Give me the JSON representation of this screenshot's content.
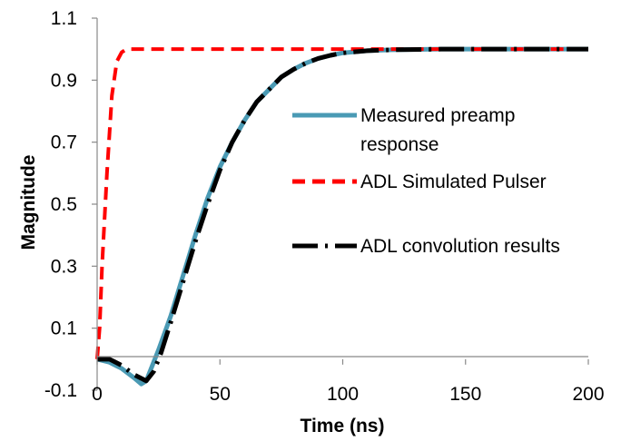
{
  "chart_data": {
    "type": "line",
    "xlabel": "Time (ns)",
    "ylabel": "Magnitude",
    "xlim": [
      0,
      200
    ],
    "ylim": [
      -0.1,
      1.1
    ],
    "x_ticks": [
      "0",
      "50",
      "100",
      "150",
      "200"
    ],
    "y_ticks": [
      "-0.1",
      "0.1",
      "0.3",
      "0.5",
      "0.7",
      "0.9",
      "1.1"
    ],
    "legend_position": "center-right",
    "grid": false,
    "series": [
      {
        "name": "Measured preamp response",
        "color": "#4a9ab4",
        "style": "solid",
        "points": [
          [
            0,
            0
          ],
          [
            5,
            -0.01
          ],
          [
            10,
            -0.03
          ],
          [
            15,
            -0.06
          ],
          [
            18,
            -0.08
          ],
          [
            20,
            -0.07
          ],
          [
            22,
            -0.03
          ],
          [
            25,
            0.03
          ],
          [
            30,
            0.14
          ],
          [
            35,
            0.27
          ],
          [
            40,
            0.4
          ],
          [
            45,
            0.52
          ],
          [
            50,
            0.62
          ],
          [
            55,
            0.7
          ],
          [
            60,
            0.77
          ],
          [
            65,
            0.83
          ],
          [
            70,
            0.87
          ],
          [
            75,
            0.91
          ],
          [
            80,
            0.935
          ],
          [
            85,
            0.955
          ],
          [
            90,
            0.97
          ],
          [
            95,
            0.98
          ],
          [
            100,
            0.988
          ],
          [
            110,
            0.995
          ],
          [
            120,
            0.998
          ],
          [
            140,
            1.0
          ],
          [
            160,
            1.0
          ],
          [
            180,
            1.0
          ],
          [
            200,
            1.0
          ]
        ]
      },
      {
        "name": "ADL Simulated Pulser",
        "color": "#ff0000",
        "style": "dashed",
        "points": [
          [
            0,
            0
          ],
          [
            1,
            0.1
          ],
          [
            2,
            0.3
          ],
          [
            4,
            0.6
          ],
          [
            6,
            0.85
          ],
          [
            8,
            0.96
          ],
          [
            10,
            0.99
          ],
          [
            12,
            1.0
          ],
          [
            200,
            1.0
          ]
        ]
      },
      {
        "name": "ADL convolution results",
        "color": "#000000",
        "style": "dashdot",
        "points": [
          [
            0,
            0
          ],
          [
            5,
            0.0
          ],
          [
            10,
            -0.02
          ],
          [
            15,
            -0.05
          ],
          [
            20,
            -0.07
          ],
          [
            23,
            -0.04
          ],
          [
            26,
            0.02
          ],
          [
            30,
            0.12
          ],
          [
            35,
            0.25
          ],
          [
            40,
            0.38
          ],
          [
            45,
            0.5
          ],
          [
            50,
            0.61
          ],
          [
            55,
            0.7
          ],
          [
            60,
            0.77
          ],
          [
            65,
            0.83
          ],
          [
            70,
            0.87
          ],
          [
            75,
            0.91
          ],
          [
            80,
            0.935
          ],
          [
            85,
            0.955
          ],
          [
            90,
            0.97
          ],
          [
            95,
            0.98
          ],
          [
            100,
            0.988
          ],
          [
            110,
            0.995
          ],
          [
            120,
            0.998
          ],
          [
            140,
            1.0
          ],
          [
            160,
            1.0
          ],
          [
            180,
            1.0
          ],
          [
            200,
            1.0
          ]
        ]
      }
    ]
  }
}
